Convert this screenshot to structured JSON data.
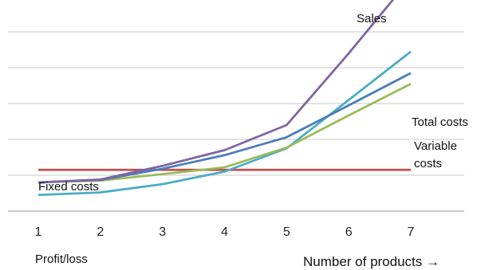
{
  "chart_data": {
    "type": "line",
    "title": "",
    "xlabel": "Number of products →",
    "ylabel": "",
    "bottom_label": "Profit/loss",
    "x": [
      1,
      2,
      3,
      4,
      5,
      6,
      7
    ],
    "xlim": [
      1,
      7
    ],
    "ylim": [
      0,
      6
    ],
    "grid": true,
    "legend": "none",
    "series": [
      {
        "name": "Sales",
        "color": "#8064A2",
        "values": [
          0.8,
          0.88,
          1.26,
          1.7,
          2.4,
          4.4,
          6.5
        ]
      },
      {
        "name": "Total costs",
        "color": "#4A7EBB",
        "values": [
          0.8,
          0.87,
          1.18,
          1.56,
          2.06,
          2.95,
          3.85
        ]
      },
      {
        "name": "Variable costs",
        "color": "#9BBB59",
        "values": [
          0.8,
          0.85,
          1.03,
          1.22,
          1.77,
          2.67,
          3.55
        ]
      },
      {
        "name": "Fixed costs",
        "color": "#C0504D",
        "values": [
          1.15,
          1.15,
          1.15,
          1.15,
          1.15,
          1.15,
          1.15
        ]
      },
      {
        "name": "Profit/loss",
        "color": "#4BACC6",
        "values": [
          0.45,
          0.52,
          0.75,
          1.1,
          1.75,
          3.1,
          4.45
        ]
      }
    ]
  }
}
